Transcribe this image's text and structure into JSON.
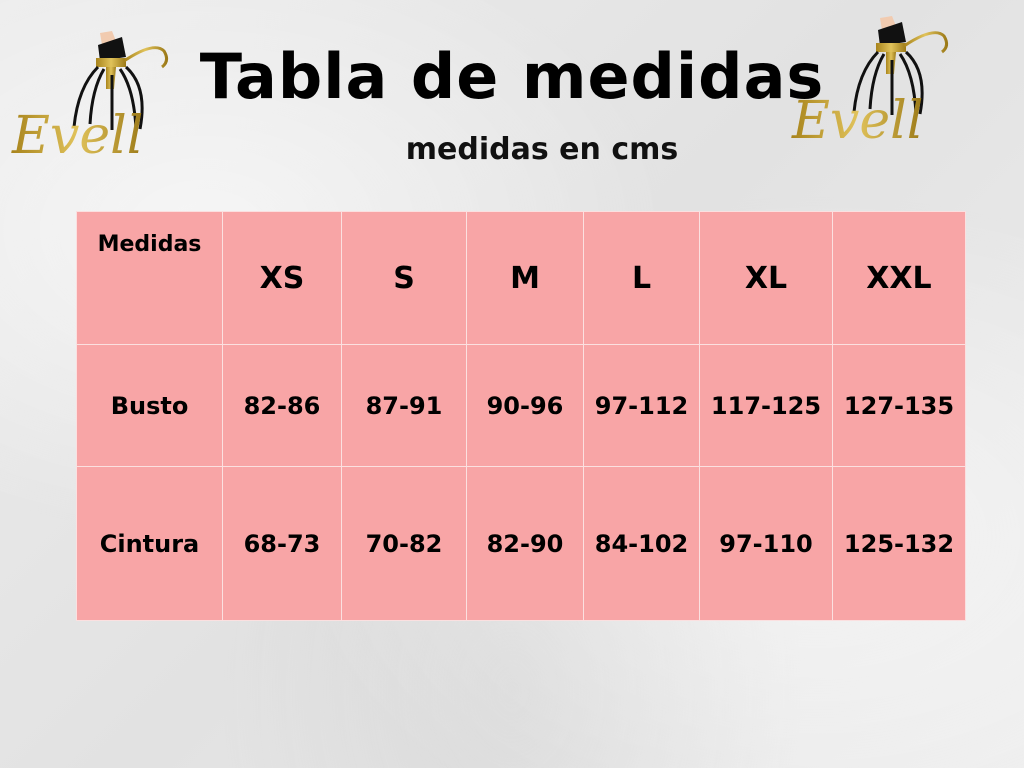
{
  "brand": "Evell",
  "title": "Tabla de medidas",
  "subtitle": "medidas en cms",
  "colors": {
    "table_bg": "#f8a5a6",
    "gold": "#c9a227"
  },
  "table": {
    "corner": "Medidas",
    "sizes": [
      "XS",
      "S",
      "M",
      "L",
      "XL",
      "XXL"
    ],
    "rows": [
      {
        "label": "Busto",
        "values": [
          "82-86",
          "87-91",
          "90-96",
          "97-112",
          "117-125",
          "127-135"
        ]
      },
      {
        "label": "Cintura",
        "values": [
          "68-73",
          "70-82",
          "82-90",
          "84-102",
          "97-110",
          "125-132"
        ]
      }
    ]
  }
}
